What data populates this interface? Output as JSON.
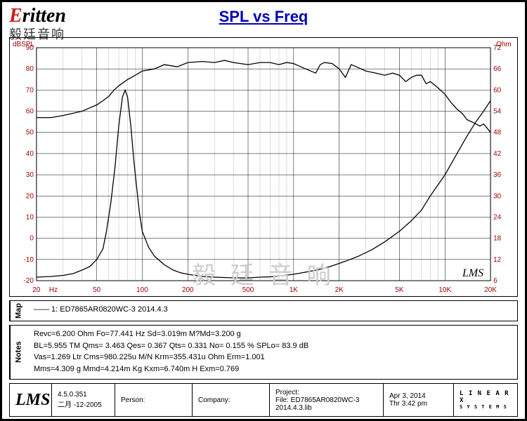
{
  "logo": {
    "brand_prefix": "E",
    "brand_rest": "ritten",
    "subtitle": "毅廷音响"
  },
  "title": "SPL vs Freq",
  "watermark": "毅 廷 音 响",
  "lms_stamp": "LMS",
  "chart": {
    "type": "line",
    "background": "#ffffff",
    "axis_color": "#a00000",
    "grid_major_color": "#000000",
    "grid_minor_color": "#888888",
    "curve_color": "#000000",
    "left_axis": {
      "label": "dBSPL",
      "min": -20,
      "max": 90,
      "step": 10,
      "ticks": [
        -20,
        -10,
        0,
        10,
        20,
        30,
        40,
        50,
        60,
        70,
        80,
        90
      ]
    },
    "right_axis": {
      "label": "Ohm",
      "min": 6,
      "max": 72,
      "step": 6,
      "ticks": [
        6,
        12,
        18,
        24,
        30,
        36,
        42,
        48,
        54,
        60,
        66,
        72
      ]
    },
    "x_axis": {
      "label": "Hz",
      "min": 20,
      "max": 20000,
      "log": true,
      "major_ticks": [
        20,
        50,
        100,
        200,
        500,
        1000,
        2000,
        5000,
        10000,
        20000
      ],
      "tick_labels": [
        "20",
        "50",
        "100",
        "200",
        "500",
        "1K",
        "2K",
        "5K",
        "10K",
        "20K"
      ]
    },
    "spl_series": [
      [
        20,
        57
      ],
      [
        25,
        57
      ],
      [
        30,
        58
      ],
      [
        40,
        60
      ],
      [
        50,
        63
      ],
      [
        55,
        65
      ],
      [
        60,
        67
      ],
      [
        65,
        70
      ],
      [
        70,
        72
      ],
      [
        80,
        75
      ],
      [
        90,
        77
      ],
      [
        100,
        79
      ],
      [
        120,
        80
      ],
      [
        140,
        82
      ],
      [
        170,
        81
      ],
      [
        200,
        83
      ],
      [
        250,
        83.5
      ],
      [
        300,
        83
      ],
      [
        350,
        84
      ],
      [
        400,
        83
      ],
      [
        500,
        82
      ],
      [
        600,
        83
      ],
      [
        700,
        83
      ],
      [
        800,
        82
      ],
      [
        900,
        83
      ],
      [
        1000,
        82.5
      ],
      [
        1200,
        80
      ],
      [
        1400,
        78
      ],
      [
        1500,
        82
      ],
      [
        1600,
        83
      ],
      [
        1800,
        82.5
      ],
      [
        2000,
        80
      ],
      [
        2200,
        76
      ],
      [
        2400,
        82
      ],
      [
        2600,
        81
      ],
      [
        3000,
        79
      ],
      [
        3500,
        78
      ],
      [
        4000,
        77
      ],
      [
        4500,
        78
      ],
      [
        5000,
        77
      ],
      [
        5500,
        74
      ],
      [
        6000,
        76
      ],
      [
        6500,
        77
      ],
      [
        7000,
        77
      ],
      [
        7500,
        73
      ],
      [
        8000,
        74
      ],
      [
        9000,
        71
      ],
      [
        10000,
        68
      ],
      [
        11000,
        64
      ],
      [
        12000,
        61
      ],
      [
        13000,
        59
      ],
      [
        14000,
        56
      ],
      [
        15000,
        55
      ],
      [
        16000,
        54
      ],
      [
        17000,
        53
      ],
      [
        18000,
        54
      ],
      [
        19000,
        52
      ],
      [
        20000,
        50
      ]
    ],
    "impedance_series_ohm": [
      [
        20,
        7
      ],
      [
        25,
        7.2
      ],
      [
        30,
        7.5
      ],
      [
        35,
        8
      ],
      [
        40,
        9
      ],
      [
        45,
        10
      ],
      [
        50,
        12
      ],
      [
        55,
        15
      ],
      [
        58,
        20
      ],
      [
        62,
        28
      ],
      [
        66,
        38
      ],
      [
        70,
        50
      ],
      [
        74,
        58
      ],
      [
        77,
        60
      ],
      [
        80,
        58
      ],
      [
        84,
        50
      ],
      [
        88,
        40
      ],
      [
        92,
        32
      ],
      [
        96,
        25
      ],
      [
        100,
        20
      ],
      [
        110,
        15.5
      ],
      [
        120,
        13
      ],
      [
        140,
        10.5
      ],
      [
        160,
        9
      ],
      [
        180,
        8.2
      ],
      [
        200,
        7.8
      ],
      [
        250,
        7.2
      ],
      [
        300,
        7
      ],
      [
        400,
        6.8
      ],
      [
        500,
        6.8
      ],
      [
        600,
        7
      ],
      [
        700,
        7.1
      ],
      [
        800,
        7.3
      ],
      [
        1000,
        7.8
      ],
      [
        1200,
        8.4
      ],
      [
        1500,
        9.2
      ],
      [
        1800,
        10.2
      ],
      [
        2200,
        11.5
      ],
      [
        2700,
        13
      ],
      [
        3300,
        14.8
      ],
      [
        4000,
        17
      ],
      [
        5000,
        20
      ],
      [
        6000,
        23
      ],
      [
        7000,
        26
      ],
      [
        8000,
        30
      ],
      [
        10000,
        36
      ],
      [
        12000,
        42
      ],
      [
        14000,
        47
      ],
      [
        16000,
        51
      ],
      [
        18000,
        54
      ],
      [
        20000,
        57
      ]
    ]
  },
  "map": {
    "label": "Map",
    "text": "—— 1: ED7865AR0820WC-3    2014.4.3"
  },
  "notes": {
    "label": "Notes",
    "lines": [
      "Revc=6.200 Ohm  Fo=77.441 Hz  Sd=3.019m M?Md=3.200 g",
      "BL=5.955 TM  Qms= 3.463  Qes= 0.367  Qts= 0.331  No= 0.155 %  SPLo= 83.9 dB",
      "Vas=1.269 Ltr  Cms=980.225u M/N  Krm=355.431u Ohm  Erm=1.001",
      "Mms=4.309 g  Mmd=4.214m Kg  Kxm=6.740m H  Exm=0.769"
    ]
  },
  "footer": {
    "lms": "LMS",
    "version": {
      "v": "4.5.0.351",
      "date": "二月 -12-2005"
    },
    "person_label": "Person:",
    "person": "",
    "company_label": "Company:",
    "company": "",
    "project_label": "Project:",
    "file_label": "File: ED7865AR0820WC-3  2014.4.3.lib",
    "date": "Apr  3, 2014",
    "time": "Thr  3:42 pm",
    "linearx_top": "L I N E A R X",
    "linearx_bot": "S Y S T E M S"
  }
}
